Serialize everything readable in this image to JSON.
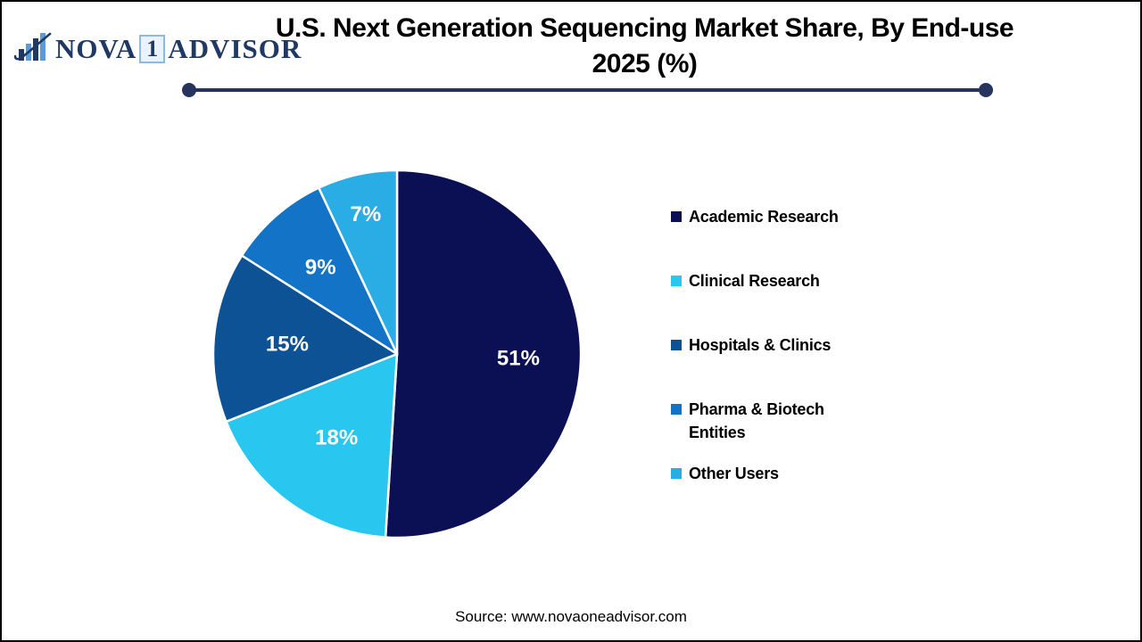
{
  "frame": {
    "border_color": "#000000",
    "background": "#FFFFFF"
  },
  "logo": {
    "text_nova": "NOVA",
    "text_one": "1",
    "text_advisor": "ADVISOR",
    "navy": "#1F3864",
    "light_blue": "#5B9BD5"
  },
  "title": {
    "line1": "U.S. Next Generation Sequencing Market Share, By End-use",
    "line2": "2025 (%)"
  },
  "divider": {
    "color": "#27335F"
  },
  "chart_data": {
    "type": "pie",
    "title": "U.S. Next Generation Sequencing Market Share, By End-use 2025 (%)",
    "unit": "%",
    "start_angle_deg": 0,
    "direction": "clockwise",
    "slices": [
      {
        "label": "Academic Research",
        "value": 51,
        "data_label": "51%",
        "color": "#0B0F54"
      },
      {
        "label": "Clinical Research",
        "value": 18,
        "data_label": "18%",
        "color": "#29C6EF"
      },
      {
        "label": "Hospitals & Clinics",
        "value": 15,
        "data_label": "15%",
        "color": "#0E5296"
      },
      {
        "label": "Pharma & Biotech Entities",
        "value": 9,
        "data_label": "9%",
        "color": "#1273C7"
      },
      {
        "label": "Other Users",
        "value": 7,
        "data_label": "7%",
        "color": "#2AACE4"
      }
    ],
    "data_label_color": "#FFFFFF",
    "slice_border_color": "#FFFFFF",
    "legend_position": "right"
  },
  "source": {
    "text": "Source: www.novaoneadvisor.com"
  }
}
